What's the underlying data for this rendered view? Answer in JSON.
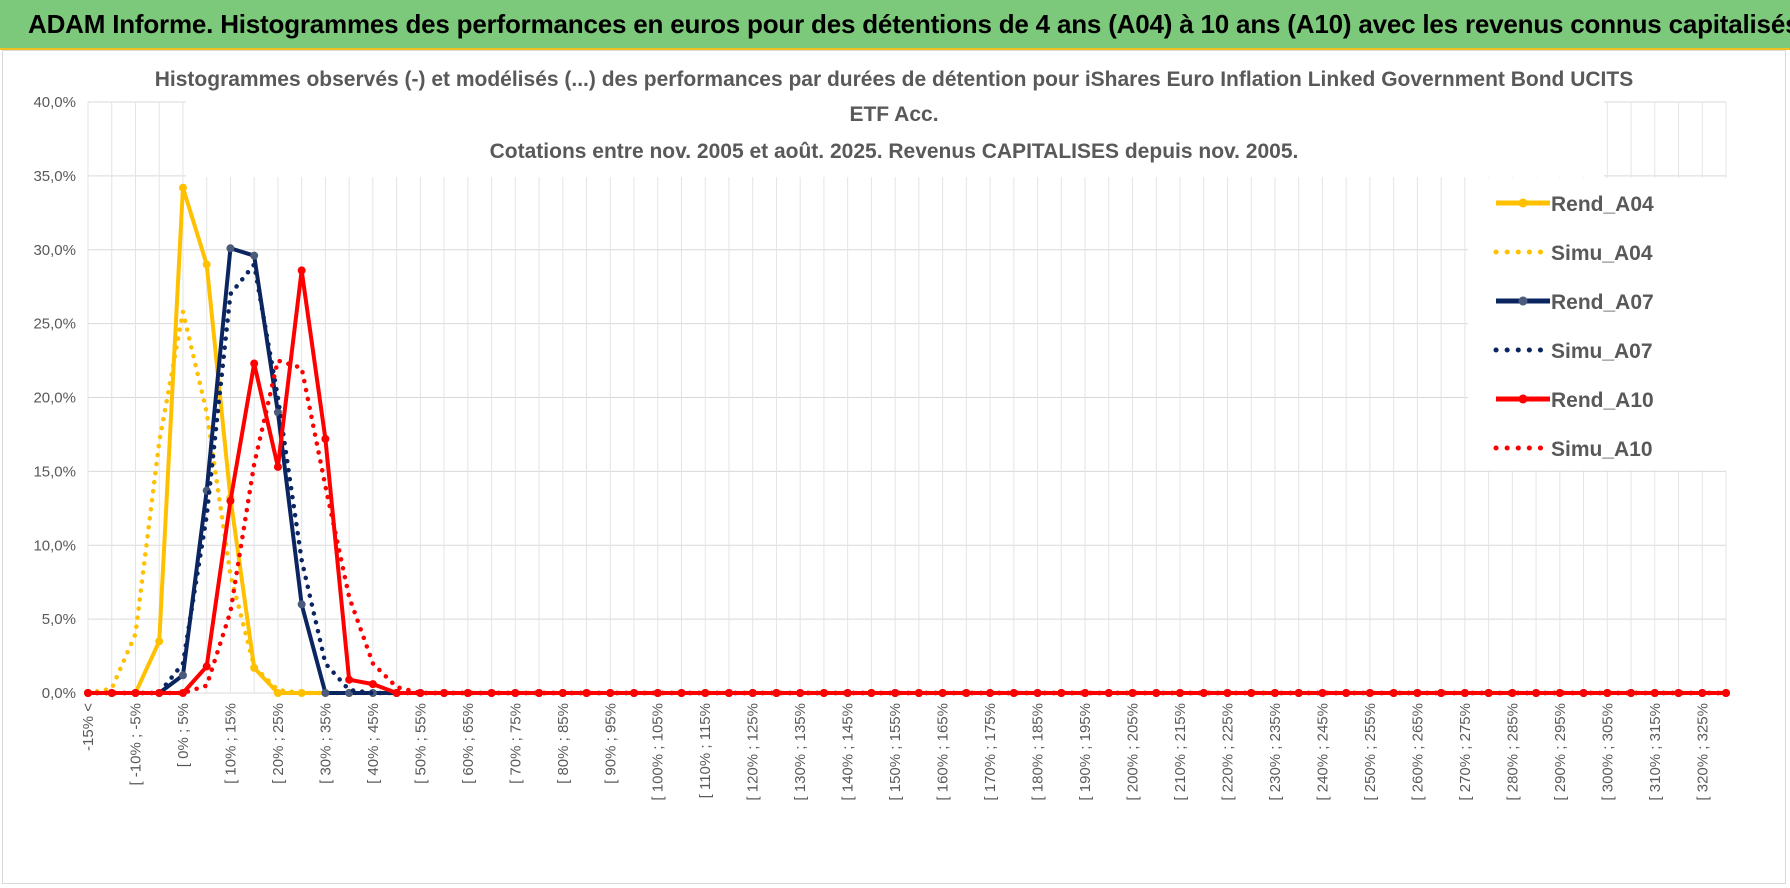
{
  "header": {
    "title": "ADAM Informe. Histogrammes des performances en euros pour des détentions de 4 ans (A04) à 10 ans (A10) avec les revenus connus capitalisés"
  },
  "chart_data": {
    "type": "line",
    "title_lines": [
      "Histogrammes observés (-) et modélisés (...) des performances par durées de détention pour iShares Euro Inflation Linked Government Bond UCITS",
      "ETF Acc.",
      "Cotations entre nov. 2005 et août. 2025. Revenus CAPITALISES depuis nov. 2005."
    ],
    "ylim": [
      0,
      40
    ],
    "yticks": [
      0,
      5,
      10,
      15,
      20,
      25,
      30,
      35,
      40
    ],
    "ytick_labels": [
      "0,0%",
      "5,0%",
      "10,0%",
      "15,0%",
      "20,0%",
      "25,0%",
      "30,0%",
      "35,0%",
      "40,0%"
    ],
    "grid": true,
    "legend_position": "right",
    "x_count": 70,
    "xtick_labels": [
      "-15% <",
      "[ -10% ; -5%",
      "[ 0% ; 5%",
      "[ 10% ; 15%",
      "[ 20% ; 25%",
      "[ 30% ; 35%",
      "[ 40% ; 45%",
      "[ 50% ; 55%",
      "[ 60% ; 65%",
      "[ 70% ; 75%",
      "[ 80% ; 85%",
      "[ 90% ; 95%",
      "[ 100% ; 105%",
      "[ 110% ; 115%",
      "[ 120% ; 125%",
      "[ 130% ; 135%",
      "[ 140% ; 145%",
      "[ 150% ; 155%",
      "[ 160% ; 165%",
      "[ 170% ; 175%",
      "[ 180% ; 185%",
      "[ 190% ; 195%",
      "[ 200% ; 205%",
      "[ 210% ; 215%",
      "[ 220% ; 225%",
      "[ 230% ; 235%",
      "[ 240% ; 245%",
      "[ 250% ; 255%",
      "[ 260% ; 265%",
      "[ 270% ; 275%",
      "[ 280% ; 285%",
      "[ 290% ; 295%",
      "[ 300% ; 305%",
      "[ 310% ; 315%",
      "[ 320% ; 325%"
    ],
    "series": [
      {
        "name": "Rend_A04",
        "color": "#ffc000",
        "style": "solid",
        "values": [
          0,
          0,
          0,
          3.5,
          34.2,
          29.0,
          13.2,
          1.7,
          0
        ]
      },
      {
        "name": "Simu_A04",
        "color": "#ffc000",
        "style": "dotted",
        "values": [
          0,
          0.3,
          4.0,
          17.0,
          25.8,
          19.0,
          8.0,
          1.8,
          0.2,
          0
        ]
      },
      {
        "name": "Rend_A07",
        "color": "#0b2560",
        "style": "solid",
        "values": [
          0,
          0,
          0,
          0,
          1.2,
          13.7,
          30.1,
          29.6,
          19.0,
          6.0,
          0,
          0,
          0,
          0
        ]
      },
      {
        "name": "Simu_A07",
        "color": "#0b2560",
        "style": "dotted",
        "values": [
          0,
          0,
          0,
          0,
          2.0,
          12.0,
          27.0,
          29.0,
          20.0,
          9.0,
          2.0,
          0.2,
          0
        ]
      },
      {
        "name": "Rend_A10",
        "color": "#ff0000",
        "style": "solid",
        "values": [
          0,
          0,
          0,
          0,
          0,
          1.8,
          13.0,
          22.3,
          15.3,
          28.6,
          17.2,
          0.9,
          0.6,
          0,
          0
        ]
      },
      {
        "name": "Simu_A10",
        "color": "#ff0000",
        "style": "dotted",
        "values": [
          0,
          0,
          0,
          0,
          0,
          0.5,
          5.5,
          15.5,
          22.5,
          22.0,
          14.0,
          6.5,
          2.0,
          0.4,
          0
        ]
      }
    ]
  }
}
